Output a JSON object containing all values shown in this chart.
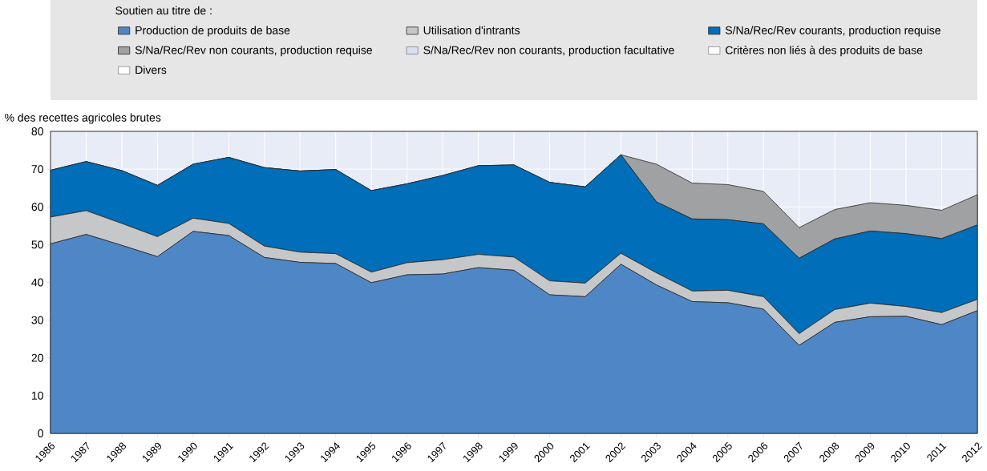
{
  "chart_data": {
    "type": "area",
    "stacked": true,
    "ylabel": "% des recettes agricoles brutes",
    "legend_title": "Soutien au titre de :",
    "legend": "top",
    "grid": true,
    "categories": [
      "1986",
      "1987",
      "1988",
      "1989",
      "1990",
      "1991",
      "1992",
      "1993",
      "1994",
      "1995",
      "1996",
      "1997",
      "1998",
      "1999",
      "2000",
      "2001",
      "2002",
      "2003",
      "2004",
      "2005",
      "2006",
      "2007",
      "2008",
      "2009",
      "2010",
      "2011",
      "2012"
    ],
    "ylim": [
      0,
      80
    ],
    "yticks": [
      0,
      10,
      20,
      30,
      40,
      50,
      60,
      70,
      80
    ],
    "series": [
      {
        "name": "Production de produits de base",
        "color": "#4f87c6",
        "values": [
          50.2,
          52.7,
          49.8,
          46.8,
          53.5,
          52.4,
          46.6,
          45.3,
          45.0,
          39.9,
          42.0,
          42.2,
          43.9,
          43.2,
          36.7,
          36.2,
          44.8,
          39.3,
          34.9,
          34.6,
          32.9,
          23.3,
          29.4,
          30.9,
          31.0,
          28.8,
          32.5
        ]
      },
      {
        "name": "Utilisation d'intrants",
        "color": "#c6c7c9",
        "values": [
          7.1,
          6.3,
          5.8,
          5.3,
          3.5,
          3.2,
          3.0,
          2.7,
          2.6,
          2.8,
          3.2,
          3.8,
          3.5,
          3.5,
          3.7,
          3.6,
          2.9,
          3.2,
          2.8,
          3.3,
          3.3,
          3.1,
          3.4,
          3.6,
          2.6,
          3.2,
          3.0
        ]
      },
      {
        "name": "S/Na/Rec/Rev courants, production requise",
        "color": "#006eb8",
        "values": [
          12.4,
          13.0,
          14.0,
          13.6,
          14.3,
          17.5,
          20.8,
          21.5,
          22.3,
          21.6,
          20.9,
          22.3,
          23.5,
          24.4,
          26.1,
          25.5,
          26.1,
          18.8,
          19.1,
          18.7,
          19.3,
          20.0,
          18.7,
          19.1,
          19.3,
          19.6,
          19.7
        ]
      },
      {
        "name": "S/Na/Rec/Rev non courants, production requise",
        "color": "#a0a1a3",
        "values": [
          0,
          0,
          0,
          0,
          0,
          0,
          0,
          0,
          0,
          0,
          0,
          0,
          0,
          0,
          0,
          0,
          0,
          10.0,
          9.5,
          9.3,
          8.6,
          8.1,
          7.8,
          7.5,
          7.5,
          7.5,
          8.0
        ]
      },
      {
        "name": "S/Na/Rec/Rev non courants, production facultative",
        "color": "#d5dff0",
        "values": [
          null,
          null,
          null,
          null,
          null,
          null,
          null,
          null,
          null,
          null,
          null,
          null,
          null,
          null,
          null,
          null,
          null,
          null,
          null,
          null,
          null,
          null,
          null,
          null,
          null,
          null,
          null
        ]
      },
      {
        "name": "Critères non liés à des produits de base",
        "color": "#ffffff",
        "values": [
          null,
          null,
          null,
          null,
          null,
          null,
          null,
          null,
          null,
          null,
          null,
          null,
          null,
          null,
          null,
          null,
          null,
          null,
          null,
          null,
          null,
          null,
          null,
          null,
          null,
          null,
          null
        ]
      },
      {
        "name": "Divers",
        "color": "#ffffff",
        "values": [
          null,
          null,
          null,
          null,
          null,
          null,
          null,
          null,
          null,
          null,
          null,
          null,
          null,
          null,
          null,
          null,
          null,
          null,
          null,
          null,
          null,
          null,
          null,
          null,
          null,
          null,
          null
        ]
      }
    ]
  }
}
